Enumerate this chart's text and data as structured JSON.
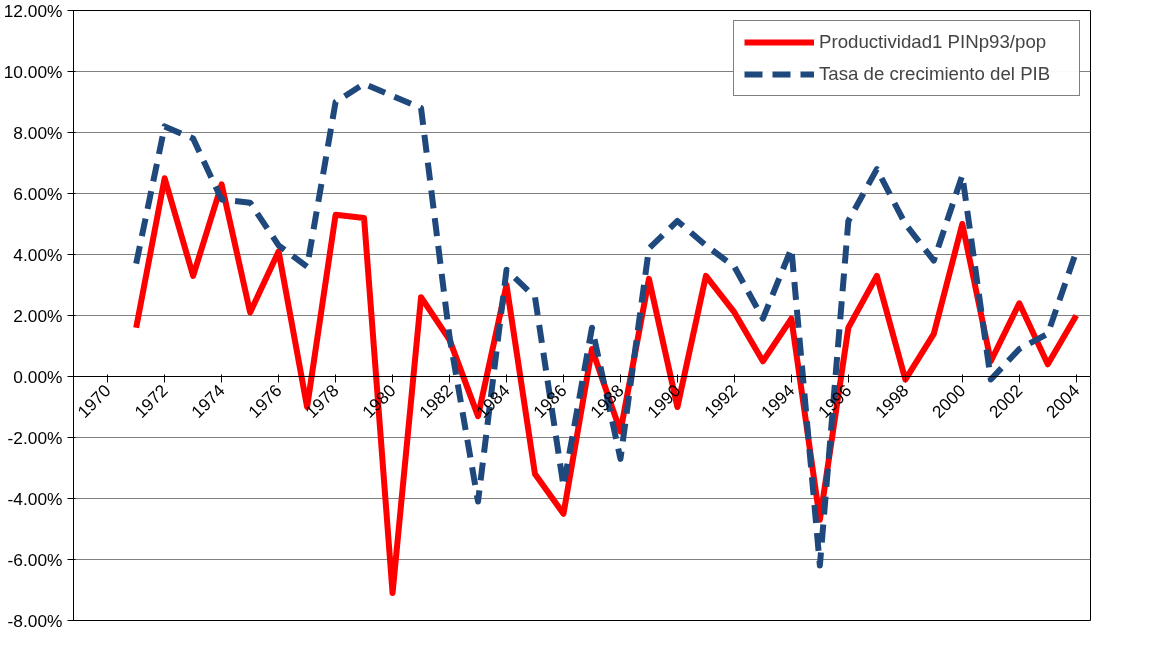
{
  "chart_data": {
    "type": "line",
    "x": [
      1971,
      1972,
      1973,
      1974,
      1975,
      1976,
      1977,
      1978,
      1979,
      1980,
      1981,
      1982,
      1983,
      1984,
      1985,
      1986,
      1987,
      1988,
      1989,
      1990,
      1991,
      1992,
      1993,
      1994,
      1995,
      1996,
      1997,
      1998,
      1999,
      2000,
      2001,
      2002,
      2003,
      2004
    ],
    "series": [
      {
        "name": "Productividad1 PINp93/pop",
        "color": "#ff0000",
        "line_style": "solid",
        "values": [
          1.6,
          6.5,
          3.3,
          6.3,
          2.1,
          4.1,
          -1.0,
          5.3,
          5.2,
          -7.1,
          2.6,
          1.2,
          -1.3,
          3.0,
          -3.2,
          -4.5,
          0.9,
          -1.8,
          3.2,
          -1.0,
          3.3,
          2.1,
          0.5,
          1.9,
          -4.7,
          1.6,
          3.3,
          -0.1,
          1.4,
          5.0,
          0.5,
          2.4,
          0.4,
          2.0
        ]
      },
      {
        "name": "Tasa de crecimiento del PIB",
        "color": "#1f497d",
        "line_style": "dashed",
        "values": [
          3.7,
          8.2,
          7.8,
          5.8,
          5.7,
          4.3,
          3.6,
          9.0,
          9.6,
          9.2,
          8.8,
          1.3,
          -4.1,
          3.5,
          2.6,
          -3.6,
          1.6,
          -2.7,
          4.2,
          5.1,
          4.3,
          3.6,
          1.9,
          4.2,
          -6.2,
          5.1,
          6.8,
          5.0,
          3.8,
          6.6,
          -0.1,
          0.9,
          1.4,
          4.1
        ]
      }
    ],
    "xlim": [
      1968.8,
      2004.5
    ],
    "xticks": [
      1970,
      1972,
      1974,
      1976,
      1978,
      1980,
      1982,
      1984,
      1986,
      1988,
      1990,
      1992,
      1994,
      1996,
      1998,
      2000,
      2002,
      2004
    ],
    "ylim": [
      -8,
      12
    ],
    "yticks": [
      {
        "value": -8,
        "label": "-8.00%"
      },
      {
        "value": -6,
        "label": "-6.00%"
      },
      {
        "value": -4,
        "label": "-4.00%"
      },
      {
        "value": -2,
        "label": "-2.00%"
      },
      {
        "value": 0,
        "label": "0.00%"
      },
      {
        "value": 2,
        "label": "2.00%"
      },
      {
        "value": 4,
        "label": "4.00%"
      },
      {
        "value": 6,
        "label": "6.00%"
      },
      {
        "value": 8,
        "label": "8.00%"
      },
      {
        "value": 10,
        "label": "10.00%"
      },
      {
        "value": 12,
        "label": "12.00%"
      }
    ],
    "grid": "y",
    "legend": "top right",
    "marker": "none"
  }
}
